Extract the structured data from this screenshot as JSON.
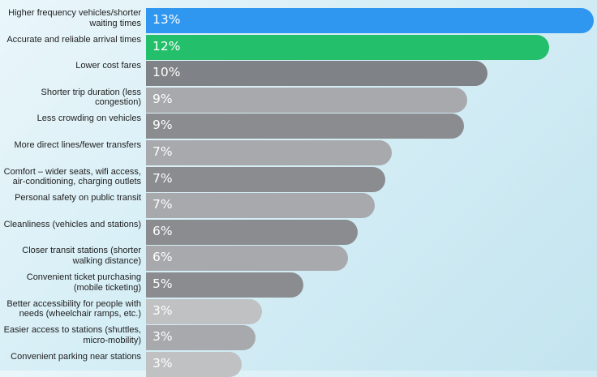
{
  "chart_data": {
    "type": "bar",
    "orientation": "horizontal",
    "categories": [
      "Higher frequency vehicles/shorter waiting times",
      "Accurate and reliable arrival times",
      "Lower cost fares",
      "Shorter trip duration (less congestion)",
      "Less crowding on vehicles",
      "More direct lines/fewer transfers",
      "Comfort – wider seats, wifi access, air-conditioning, charging outlets",
      "Personal safety on public transit",
      "Cleanliness (vehicles and stations)",
      "Closer transit stations (shorter walking distance)",
      "Convenient ticket purchasing (mobile ticketing)",
      "Better accessibility for people with needs (wheelchair ramps, etc.)",
      "Easier access to stations (shuttles, micro-mobility)",
      "Convenient parking near stations"
    ],
    "values": [
      13.1,
      11.8,
      10.0,
      9.4,
      9.3,
      7.2,
      7.0,
      6.7,
      6.2,
      5.9,
      4.6,
      3.4,
      3.2,
      2.8
    ],
    "value_labels": [
      "13%",
      "12%",
      "10%",
      "9%",
      "9%",
      "7%",
      "7%",
      "7%",
      "6%",
      "6%",
      "5%",
      "3%",
      "3%",
      "3%"
    ],
    "colors": [
      "#2f97ef",
      "#23bf6a",
      "#7f8286",
      "#a7a9ac",
      "#8a8c90",
      "#a7a9ac",
      "#8a8c90",
      "#a7a9ac",
      "#8a8c90",
      "#a7a9ac",
      "#8a8c90",
      "#bfc1c3",
      "#a7a9ac",
      "#bfc1c3"
    ],
    "xlim": [
      0,
      13.1
    ]
  }
}
